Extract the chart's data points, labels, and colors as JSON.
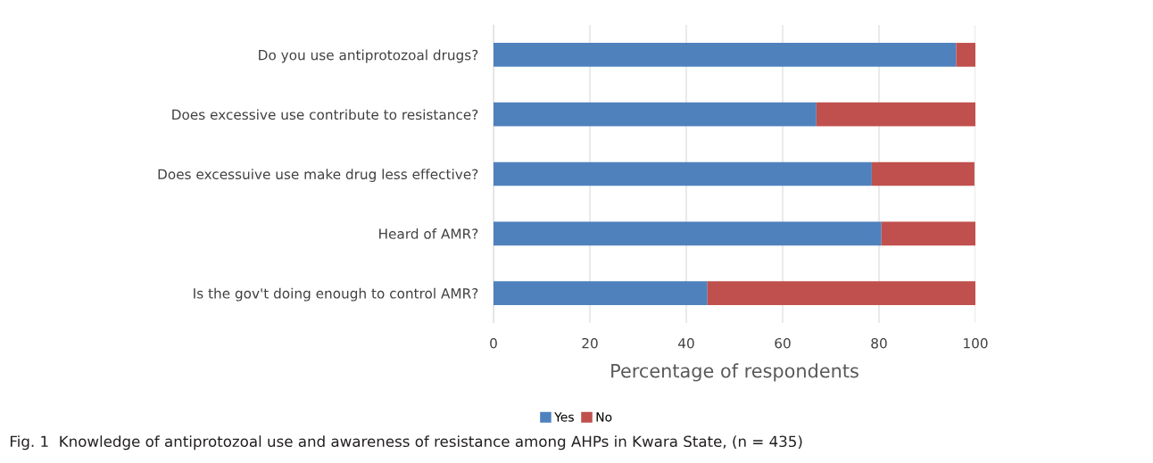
{
  "chart_data": {
    "type": "bar",
    "orientation": "horizontal",
    "stacked": true,
    "categories": [
      "Do you use antiprotozoal drugs?",
      "Does excessive use contribute to resistance?",
      "Does excessuive use make drug less effective?",
      "Heard of AMR?",
      "Is the gov't doing enough to control AMR?"
    ],
    "series": [
      {
        "name": "Yes",
        "color": "#4f81bd",
        "values": [
          96.0,
          67.0,
          78.5,
          80.5,
          44.4
        ]
      },
      {
        "name": "No",
        "color": "#c0504d",
        "values": [
          4.0,
          33.0,
          21.3,
          19.8,
          55.6
        ]
      }
    ],
    "xlabel": "Percentage of respondents",
    "xlim": [
      0,
      100
    ],
    "xticks": [
      0,
      20,
      40,
      60,
      80,
      100
    ],
    "grid": "x",
    "legend": "bottom",
    "annotations": [
      "Fig. 1  Knowledge of antiprotozoal use and awareness of resistance among AHPs in Kwara State, (n = 435)"
    ]
  }
}
